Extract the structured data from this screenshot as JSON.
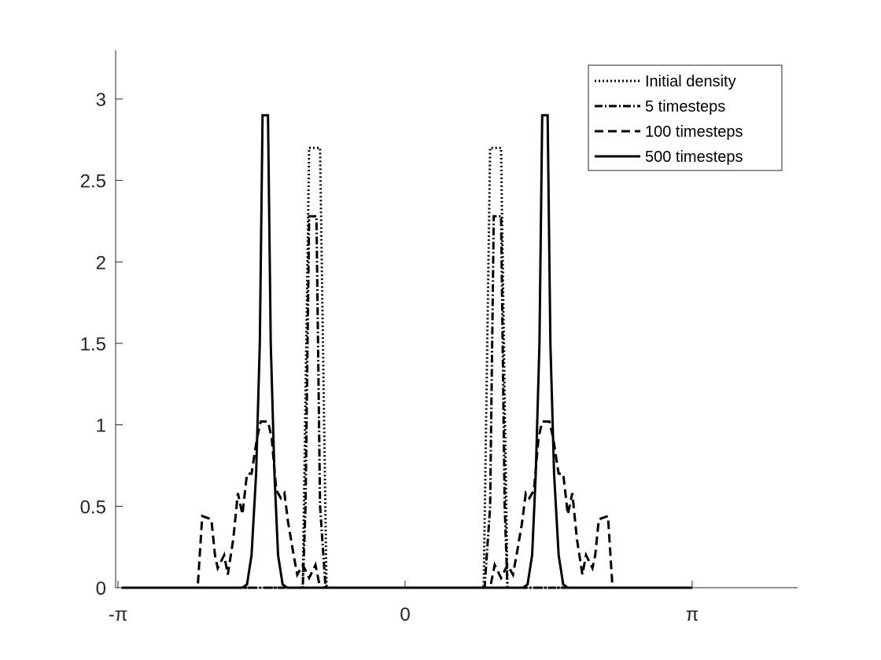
{
  "chart_data": {
    "type": "line",
    "title": "",
    "xlabel": "",
    "ylabel": "",
    "xlim": [
      -3.14159,
      5.2
    ],
    "ylim": [
      0,
      3.3
    ],
    "grid": false,
    "legend_position": "top-right",
    "x_ticks": [
      {
        "value": -3.14159,
        "label": "-π"
      },
      {
        "value": 0,
        "label": "0"
      },
      {
        "value": 3.14159,
        "label": "π"
      }
    ],
    "y_ticks": [
      {
        "value": 0,
        "label": "0"
      },
      {
        "value": 0.5,
        "label": "0.5"
      },
      {
        "value": 1,
        "label": "1"
      },
      {
        "value": 1.5,
        "label": "1.5"
      },
      {
        "value": 2,
        "label": "2"
      },
      {
        "value": 2.5,
        "label": "2.5"
      },
      {
        "value": 3,
        "label": "3"
      }
    ],
    "series": [
      {
        "name": "Initial density",
        "dash": "2,3",
        "points": [
          [
            -3.1,
            0
          ],
          [
            -1.12,
            0
          ],
          [
            -1.05,
            2.7
          ],
          [
            -0.93,
            2.7
          ],
          [
            -0.86,
            0
          ],
          [
            0.86,
            0
          ],
          [
            0.93,
            2.7
          ],
          [
            1.05,
            2.7
          ],
          [
            1.12,
            0
          ],
          [
            3.14,
            0
          ]
        ]
      },
      {
        "name": "5 timesteps",
        "dash": "10,3,2,3",
        "points": [
          [
            -3.1,
            0
          ],
          [
            -1.12,
            0
          ],
          [
            -1.09,
            0.5
          ],
          [
            -1.05,
            2.28
          ],
          [
            -0.97,
            2.28
          ],
          [
            -0.93,
            0.5
          ],
          [
            -0.87,
            0
          ],
          [
            0.87,
            0
          ],
          [
            0.93,
            0.5
          ],
          [
            0.97,
            2.28
          ],
          [
            1.05,
            2.28
          ],
          [
            1.09,
            0.5
          ],
          [
            1.12,
            0
          ],
          [
            3.14,
            0
          ]
        ]
      },
      {
        "name": "100 timesteps",
        "dash": "11,6",
        "points": [
          [
            -3.1,
            0
          ],
          [
            -2.27,
            0
          ],
          [
            -2.22,
            0.44
          ],
          [
            -2.12,
            0.42
          ],
          [
            -2.08,
            0.2
          ],
          [
            -2.05,
            0.12
          ],
          [
            -1.98,
            0.2
          ],
          [
            -1.94,
            0.08
          ],
          [
            -1.88,
            0.3
          ],
          [
            -1.83,
            0.58
          ],
          [
            -1.78,
            0.45
          ],
          [
            -1.73,
            0.7
          ],
          [
            -1.68,
            0.7
          ],
          [
            -1.62,
            0.92
          ],
          [
            -1.58,
            1.02
          ],
          [
            -1.5,
            1.02
          ],
          [
            -1.46,
            0.92
          ],
          [
            -1.41,
            0.6
          ],
          [
            -1.36,
            0.55
          ],
          [
            -1.32,
            0.58
          ],
          [
            -1.28,
            0.4
          ],
          [
            -1.22,
            0.2
          ],
          [
            -1.18,
            0.08
          ],
          [
            -1.12,
            0.14
          ],
          [
            -1.05,
            0.06
          ],
          [
            -0.98,
            0.14
          ],
          [
            -0.93,
            0
          ],
          [
            0.93,
            0
          ],
          [
            0.98,
            0.14
          ],
          [
            1.05,
            0.06
          ],
          [
            1.12,
            0.14
          ],
          [
            1.18,
            0.08
          ],
          [
            1.22,
            0.2
          ],
          [
            1.28,
            0.4
          ],
          [
            1.32,
            0.58
          ],
          [
            1.36,
            0.55
          ],
          [
            1.41,
            0.6
          ],
          [
            1.46,
            0.92
          ],
          [
            1.5,
            1.02
          ],
          [
            1.58,
            1.02
          ],
          [
            1.62,
            0.92
          ],
          [
            1.68,
            0.7
          ],
          [
            1.73,
            0.7
          ],
          [
            1.78,
            0.45
          ],
          [
            1.83,
            0.58
          ],
          [
            1.88,
            0.3
          ],
          [
            1.94,
            0.08
          ],
          [
            1.98,
            0.2
          ],
          [
            2.05,
            0.12
          ],
          [
            2.08,
            0.2
          ],
          [
            2.12,
            0.42
          ],
          [
            2.22,
            0.44
          ],
          [
            2.27,
            0
          ],
          [
            3.14,
            0
          ]
        ]
      },
      {
        "name": "500 timesteps",
        "dash": "",
        "points": [
          [
            -3.1,
            0
          ],
          [
            -1.78,
            0
          ],
          [
            -1.73,
            0.02
          ],
          [
            -1.68,
            0.2
          ],
          [
            -1.63,
            0.7
          ],
          [
            -1.59,
            1.5
          ],
          [
            -1.56,
            2.9
          ],
          [
            -1.5,
            2.9
          ],
          [
            -1.47,
            1.5
          ],
          [
            -1.43,
            0.7
          ],
          [
            -1.39,
            0.2
          ],
          [
            -1.34,
            0.02
          ],
          [
            -1.29,
            0
          ],
          [
            1.29,
            0
          ],
          [
            1.34,
            0.02
          ],
          [
            1.39,
            0.2
          ],
          [
            1.43,
            0.7
          ],
          [
            1.47,
            1.5
          ],
          [
            1.5,
            2.9
          ],
          [
            1.56,
            2.9
          ],
          [
            1.59,
            1.5
          ],
          [
            1.63,
            0.7
          ],
          [
            1.68,
            0.2
          ],
          [
            1.73,
            0.02
          ],
          [
            1.78,
            0
          ],
          [
            3.14,
            0
          ]
        ]
      }
    ]
  }
}
